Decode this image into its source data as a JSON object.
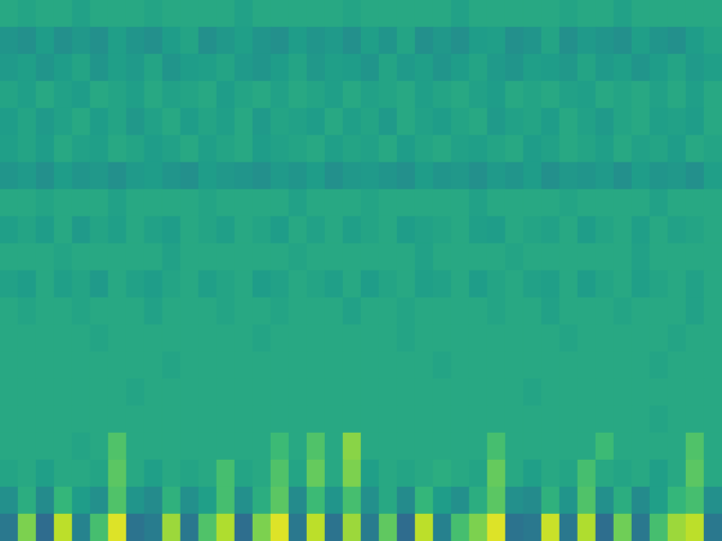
{
  "chart_data": {
    "type": "heatmap",
    "tick_labels": false,
    "grid": false,
    "color_range": [
      0,
      1
    ],
    "cells": [
      [
        0.6,
        0.58,
        0.6,
        0.6,
        0.57,
        0.6,
        0.6,
        0.6,
        0.58,
        0.6,
        0.6,
        0.6,
        0.6,
        0.57,
        0.6,
        0.6,
        0.6,
        0.6,
        0.6,
        0.58,
        0.6,
        0.6,
        0.6,
        0.6,
        0.6,
        0.57,
        0.6,
        0.6,
        0.6,
        0.6,
        0.6,
        0.58,
        0.6,
        0.6,
        0.57,
        0.6,
        0.6,
        0.6,
        0.6,
        0.6
      ],
      [
        0.52,
        0.5,
        0.55,
        0.5,
        0.53,
        0.5,
        0.56,
        0.52,
        0.5,
        0.55,
        0.58,
        0.5,
        0.53,
        0.56,
        0.52,
        0.5,
        0.55,
        0.52,
        0.54,
        0.5,
        0.56,
        0.52,
        0.58,
        0.5,
        0.53,
        0.5,
        0.55,
        0.56,
        0.5,
        0.52,
        0.58,
        0.5,
        0.54,
        0.52,
        0.5,
        0.56,
        0.52,
        0.5,
        0.55,
        0.58
      ],
      [
        0.54,
        0.56,
        0.52,
        0.55,
        0.58,
        0.52,
        0.56,
        0.54,
        0.58,
        0.52,
        0.55,
        0.56,
        0.58,
        0.54,
        0.52,
        0.55,
        0.58,
        0.53,
        0.56,
        0.55,
        0.52,
        0.58,
        0.54,
        0.56,
        0.52,
        0.55,
        0.58,
        0.54,
        0.52,
        0.56,
        0.55,
        0.53,
        0.58,
        0.54,
        0.56,
        0.52,
        0.55,
        0.58,
        0.54,
        0.56
      ],
      [
        0.58,
        0.56,
        0.6,
        0.57,
        0.55,
        0.6,
        0.58,
        0.56,
        0.6,
        0.57,
        0.58,
        0.6,
        0.55,
        0.58,
        0.6,
        0.57,
        0.6,
        0.58,
        0.56,
        0.6,
        0.57,
        0.58,
        0.6,
        0.56,
        0.58,
        0.6,
        0.57,
        0.55,
        0.6,
        0.58,
        0.6,
        0.57,
        0.56,
        0.6,
        0.58,
        0.6,
        0.57,
        0.6,
        0.56,
        0.6
      ],
      [
        0.55,
        0.58,
        0.54,
        0.57,
        0.6,
        0.55,
        0.58,
        0.53,
        0.57,
        0.6,
        0.55,
        0.58,
        0.56,
        0.6,
        0.54,
        0.58,
        0.57,
        0.55,
        0.6,
        0.56,
        0.58,
        0.54,
        0.6,
        0.57,
        0.55,
        0.58,
        0.6,
        0.54,
        0.57,
        0.58,
        0.55,
        0.6,
        0.57,
        0.54,
        0.58,
        0.6,
        0.56,
        0.57,
        0.55,
        0.6
      ],
      [
        0.56,
        0.58,
        0.55,
        0.6,
        0.57,
        0.56,
        0.6,
        0.58,
        0.55,
        0.57,
        0.6,
        0.56,
        0.58,
        0.6,
        0.55,
        0.57,
        0.58,
        0.6,
        0.56,
        0.58,
        0.57,
        0.6,
        0.55,
        0.58,
        0.6,
        0.57,
        0.56,
        0.58,
        0.6,
        0.55,
        0.57,
        0.6,
        0.58,
        0.56,
        0.6,
        0.57,
        0.58,
        0.55,
        0.6,
        0.58
      ],
      [
        0.52,
        0.54,
        0.5,
        0.55,
        0.52,
        0.53,
        0.5,
        0.54,
        0.55,
        0.52,
        0.5,
        0.55,
        0.53,
        0.52,
        0.5,
        0.54,
        0.52,
        0.55,
        0.5,
        0.53,
        0.54,
        0.52,
        0.5,
        0.55,
        0.52,
        0.53,
        0.5,
        0.54,
        0.52,
        0.55,
        0.5,
        0.53,
        0.52,
        0.54,
        0.5,
        0.55,
        0.52,
        0.53,
        0.5,
        0.56
      ],
      [
        0.6,
        0.6,
        0.58,
        0.6,
        0.6,
        0.6,
        0.57,
        0.6,
        0.6,
        0.6,
        0.6,
        0.58,
        0.6,
        0.6,
        0.6,
        0.6,
        0.57,
        0.6,
        0.6,
        0.6,
        0.58,
        0.6,
        0.6,
        0.6,
        0.6,
        0.6,
        0.57,
        0.6,
        0.6,
        0.6,
        0.6,
        0.58,
        0.6,
        0.6,
        0.6,
        0.6,
        0.57,
        0.6,
        0.6,
        0.6
      ],
      [
        0.56,
        0.58,
        0.55,
        0.6,
        0.54,
        0.58,
        0.56,
        0.6,
        0.57,
        0.55,
        0.6,
        0.58,
        0.56,
        0.6,
        0.58,
        0.55,
        0.6,
        0.57,
        0.6,
        0.56,
        0.58,
        0.6,
        0.55,
        0.57,
        0.58,
        0.6,
        0.56,
        0.55,
        0.6,
        0.58,
        0.57,
        0.6,
        0.55,
        0.58,
        0.6,
        0.56,
        0.6,
        0.57,
        0.58,
        0.6
      ],
      [
        0.6,
        0.6,
        0.6,
        0.58,
        0.6,
        0.6,
        0.6,
        0.6,
        0.6,
        0.57,
        0.6,
        0.6,
        0.6,
        0.6,
        0.6,
        0.6,
        0.58,
        0.6,
        0.6,
        0.6,
        0.6,
        0.6,
        0.6,
        0.57,
        0.6,
        0.6,
        0.6,
        0.6,
        0.58,
        0.6,
        0.6,
        0.6,
        0.6,
        0.6,
        0.6,
        0.57,
        0.6,
        0.6,
        0.6,
        0.6
      ],
      [
        0.57,
        0.55,
        0.6,
        0.56,
        0.58,
        0.54,
        0.6,
        0.57,
        0.55,
        0.58,
        0.6,
        0.56,
        0.58,
        0.6,
        0.55,
        0.57,
        0.6,
        0.58,
        0.56,
        0.6,
        0.55,
        0.58,
        0.6,
        0.56,
        0.57,
        0.6,
        0.55,
        0.58,
        0.6,
        0.57,
        0.56,
        0.6,
        0.55,
        0.58,
        0.6,
        0.56,
        0.58,
        0.6,
        0.57,
        0.6
      ],
      [
        0.6,
        0.58,
        0.6,
        0.6,
        0.58,
        0.6,
        0.6,
        0.6,
        0.57,
        0.6,
        0.6,
        0.6,
        0.58,
        0.6,
        0.6,
        0.58,
        0.6,
        0.6,
        0.6,
        0.57,
        0.6,
        0.6,
        0.58,
        0.6,
        0.6,
        0.6,
        0.6,
        0.58,
        0.6,
        0.6,
        0.57,
        0.6,
        0.6,
        0.6,
        0.58,
        0.6,
        0.6,
        0.6,
        0.57,
        0.6
      ],
      [
        0.6,
        0.6,
        0.6,
        0.6,
        0.6,
        0.58,
        0.6,
        0.6,
        0.6,
        0.6,
        0.6,
        0.6,
        0.6,
        0.6,
        0.58,
        0.6,
        0.6,
        0.6,
        0.6,
        0.6,
        0.6,
        0.6,
        0.58,
        0.6,
        0.6,
        0.6,
        0.6,
        0.6,
        0.6,
        0.6,
        0.6,
        0.58,
        0.6,
        0.6,
        0.6,
        0.6,
        0.6,
        0.58,
        0.6,
        0.6
      ],
      [
        0.6,
        0.6,
        0.6,
        0.6,
        0.6,
        0.6,
        0.6,
        0.6,
        0.6,
        0.58,
        0.6,
        0.6,
        0.6,
        0.6,
        0.6,
        0.6,
        0.6,
        0.6,
        0.6,
        0.6,
        0.6,
        0.6,
        0.6,
        0.6,
        0.58,
        0.6,
        0.6,
        0.6,
        0.6,
        0.6,
        0.6,
        0.6,
        0.6,
        0.6,
        0.6,
        0.6,
        0.58,
        0.6,
        0.6,
        0.6
      ],
      [
        0.6,
        0.6,
        0.6,
        0.6,
        0.6,
        0.6,
        0.6,
        0.58,
        0.6,
        0.6,
        0.6,
        0.6,
        0.6,
        0.6,
        0.6,
        0.6,
        0.6,
        0.6,
        0.6,
        0.6,
        0.6,
        0.6,
        0.6,
        0.6,
        0.6,
        0.6,
        0.6,
        0.6,
        0.6,
        0.58,
        0.6,
        0.6,
        0.6,
        0.6,
        0.6,
        0.6,
        0.6,
        0.6,
        0.6,
        0.6
      ],
      [
        0.6,
        0.6,
        0.6,
        0.6,
        0.6,
        0.6,
        0.6,
        0.6,
        0.6,
        0.6,
        0.6,
        0.6,
        0.6,
        0.6,
        0.6,
        0.6,
        0.6,
        0.6,
        0.6,
        0.6,
        0.6,
        0.6,
        0.6,
        0.6,
        0.6,
        0.6,
        0.6,
        0.6,
        0.6,
        0.6,
        0.6,
        0.6,
        0.6,
        0.6,
        0.6,
        0.6,
        0.58,
        0.6,
        0.6,
        0.6
      ],
      [
        0.6,
        0.6,
        0.6,
        0.6,
        0.58,
        0.6,
        0.72,
        0.6,
        0.6,
        0.6,
        0.6,
        0.6,
        0.6,
        0.6,
        0.6,
        0.68,
        0.6,
        0.72,
        0.6,
        0.82,
        0.6,
        0.6,
        0.6,
        0.6,
        0.6,
        0.6,
        0.6,
        0.7,
        0.6,
        0.6,
        0.6,
        0.6,
        0.6,
        0.68,
        0.6,
        0.6,
        0.6,
        0.6,
        0.72,
        0.6
      ],
      [
        0.58,
        0.6,
        0.56,
        0.6,
        0.6,
        0.58,
        0.74,
        0.6,
        0.56,
        0.6,
        0.58,
        0.6,
        0.7,
        0.58,
        0.6,
        0.72,
        0.58,
        0.76,
        0.6,
        0.8,
        0.56,
        0.6,
        0.58,
        0.6,
        0.62,
        0.6,
        0.58,
        0.76,
        0.6,
        0.56,
        0.6,
        0.58,
        0.7,
        0.6,
        0.58,
        0.6,
        0.56,
        0.6,
        0.74,
        0.6
      ],
      [
        0.5,
        0.62,
        0.48,
        0.66,
        0.55,
        0.5,
        0.72,
        0.52,
        0.48,
        0.64,
        0.5,
        0.56,
        0.7,
        0.5,
        0.62,
        0.74,
        0.48,
        0.68,
        0.52,
        0.7,
        0.5,
        0.6,
        0.48,
        0.66,
        0.55,
        0.5,
        0.62,
        0.74,
        0.5,
        0.48,
        0.64,
        0.52,
        0.72,
        0.5,
        0.62,
        0.48,
        0.56,
        0.66,
        0.7,
        0.5
      ],
      [
        0.4,
        0.8,
        0.35,
        0.9,
        0.45,
        0.7,
        0.95,
        0.38,
        0.42,
        0.85,
        0.4,
        0.72,
        0.88,
        0.36,
        0.8,
        0.95,
        0.4,
        0.9,
        0.38,
        0.85,
        0.42,
        0.75,
        0.35,
        0.9,
        0.44,
        0.7,
        0.8,
        0.95,
        0.38,
        0.4,
        0.92,
        0.4,
        0.88,
        0.36,
        0.78,
        0.4,
        0.7,
        0.85,
        0.9,
        0.4
      ]
    ]
  }
}
